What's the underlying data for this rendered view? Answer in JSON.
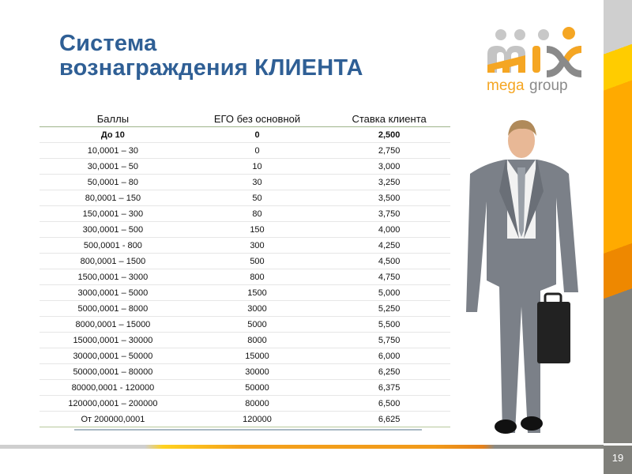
{
  "slide": {
    "title_line1": "Система",
    "title_line2": "вознаграждения КЛИЕНТА",
    "page_number": "19"
  },
  "logo": {
    "text_top": "mix",
    "text_bottom": "mega group",
    "colors": {
      "orange": "#f5a623",
      "gray": "#8a8a8a"
    }
  },
  "colors": {
    "title": "#2f5f95",
    "accent_yellow": "#ffcc00",
    "accent_orange": "#ffaa00",
    "accent_gray": "#7f7f7a"
  },
  "table": {
    "headers": [
      "Баллы",
      "ЕГО без основной",
      "Ставка клиента"
    ],
    "rows": [
      [
        "До 10",
        "0",
        "2,500"
      ],
      [
        "10,0001 – 30",
        "0",
        "2,750"
      ],
      [
        "30,0001 – 50",
        "10",
        "3,000"
      ],
      [
        "50,0001 – 80",
        "30",
        "3,250"
      ],
      [
        "80,0001 – 150",
        "50",
        "3,500"
      ],
      [
        "150,0001 – 300",
        "80",
        "3,750"
      ],
      [
        "300,0001 – 500",
        "150",
        "4,000"
      ],
      [
        "500,0001 - 800",
        "300",
        "4,250"
      ],
      [
        "800,0001 – 1500",
        "500",
        "4,500"
      ],
      [
        "1500,0001 – 3000",
        "800",
        "4,750"
      ],
      [
        "3000,0001 – 5000",
        "1500",
        "5,000"
      ],
      [
        "5000,0001 – 8000",
        "3000",
        "5,250"
      ],
      [
        "8000,0001 – 15000",
        "5000",
        "5,500"
      ],
      [
        "15000,0001 – 30000",
        "8000",
        "5,750"
      ],
      [
        "30000,0001 – 50000",
        "15000",
        "6,000"
      ],
      [
        "50000,0001 – 80000",
        "30000",
        "6,250"
      ],
      [
        "80000,0001 - 120000",
        "50000",
        "6,375"
      ],
      [
        "120000,0001 – 200000",
        "80000",
        "6,500"
      ],
      [
        "От 200000,0001",
        "120000",
        "6,625"
      ]
    ]
  }
}
